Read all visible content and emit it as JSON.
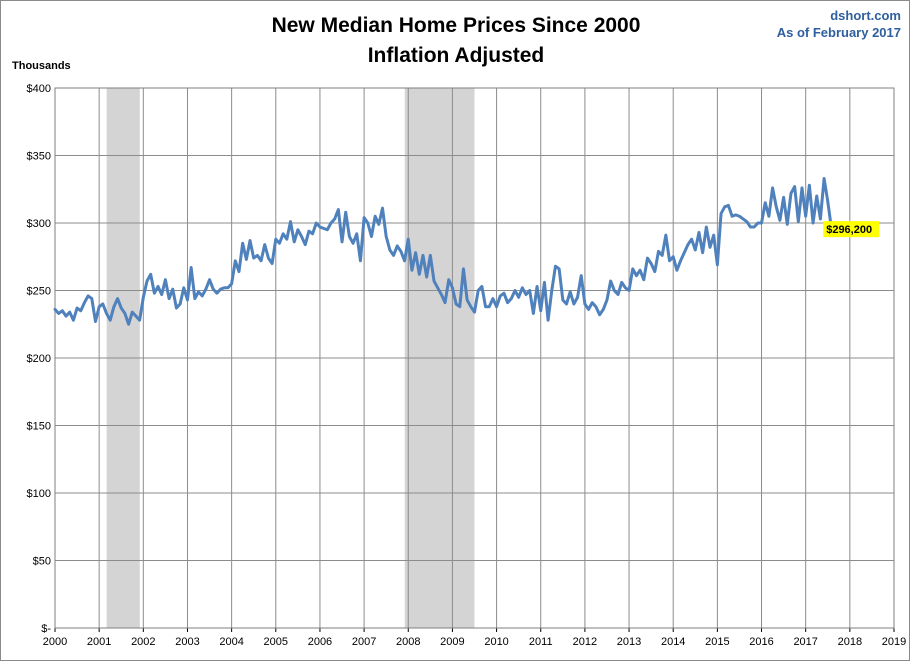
{
  "chart_data": {
    "type": "line",
    "title": "New Median Home Prices Since 2000",
    "subtitle": "Inflation Adjusted",
    "source": "dshort.com",
    "as_of": "As of February 2017",
    "ylabel": "Thousands",
    "xlim": [
      2000,
      2019
    ],
    "ylim": [
      0,
      400
    ],
    "y_ticks": [
      0,
      50,
      100,
      150,
      200,
      250,
      300,
      350,
      400
    ],
    "y_tick_labels": [
      "$-",
      "$50",
      "$100",
      "$150",
      "$200",
      "$250",
      "$300",
      "$350",
      "$400"
    ],
    "x_ticks": [
      2000,
      2001,
      2002,
      2003,
      2004,
      2005,
      2006,
      2007,
      2008,
      2009,
      2010,
      2011,
      2012,
      2013,
      2014,
      2015,
      2016,
      2017,
      2018,
      2019
    ],
    "x_tick_labels": [
      "2000",
      "2001",
      "2002",
      "2003",
      "2004",
      "2005",
      "2006",
      "2007",
      "2008",
      "2009",
      "2010",
      "2011",
      "2012",
      "2013",
      "2014",
      "2015",
      "2016",
      "2017",
      "2018",
      "2019"
    ],
    "grid": true,
    "recessions": [
      {
        "start": 2001.17,
        "end": 2001.92
      },
      {
        "start": 2007.92,
        "end": 2009.5
      }
    ],
    "series": [
      {
        "name": "New Median Home Price (Inflation Adjusted)",
        "color": "#4f81bd",
        "start": 2000.0,
        "step": 0.0833333,
        "values": [
          236,
          233,
          235,
          231,
          234,
          228,
          237,
          235,
          241,
          246,
          244,
          227,
          238,
          240,
          233,
          228,
          238,
          244,
          237,
          233,
          225,
          234,
          231,
          228,
          245,
          257,
          262,
          248,
          253,
          247,
          258,
          244,
          251,
          237,
          240,
          252,
          243,
          267,
          244,
          249,
          246,
          251,
          258,
          251,
          248,
          251,
          252,
          252,
          255,
          272,
          264,
          285,
          273,
          287,
          274,
          276,
          272,
          284,
          274,
          270,
          288,
          285,
          292,
          288,
          301,
          286,
          295,
          290,
          284,
          294,
          292,
          300,
          297,
          296,
          295,
          300,
          303,
          310,
          286,
          308,
          290,
          285,
          292,
          272,
          304,
          300,
          290,
          305,
          299,
          311,
          290,
          280,
          276,
          283,
          279,
          272,
          288,
          265,
          278,
          262,
          276,
          260,
          276,
          257,
          252,
          247,
          241,
          258,
          252,
          240,
          238,
          266,
          243,
          238,
          234,
          250,
          253,
          238,
          238,
          244,
          238,
          246,
          248,
          241,
          244,
          250,
          245,
          252,
          247,
          250,
          233,
          253,
          235,
          256,
          228,
          250,
          268,
          266,
          243,
          240,
          249,
          240,
          245,
          261,
          240,
          236,
          241,
          238,
          232,
          236,
          243,
          257,
          250,
          247,
          256,
          252,
          250,
          266,
          261,
          265,
          258,
          274,
          270,
          264,
          279,
          276,
          291,
          272,
          275,
          265,
          272,
          278,
          284,
          288,
          280,
          293,
          278,
          297,
          282,
          291,
          269,
          307,
          312,
          313,
          305,
          306,
          305,
          303,
          301,
          297,
          297,
          300,
          300,
          315,
          305,
          326,
          312,
          302,
          319,
          299,
          322,
          327,
          301,
          326,
          305,
          328,
          300,
          320,
          303,
          333,
          316,
          296
        ]
      }
    ],
    "callout": {
      "label": "$296,200",
      "x": 2017.08,
      "value": 296.2
    }
  }
}
